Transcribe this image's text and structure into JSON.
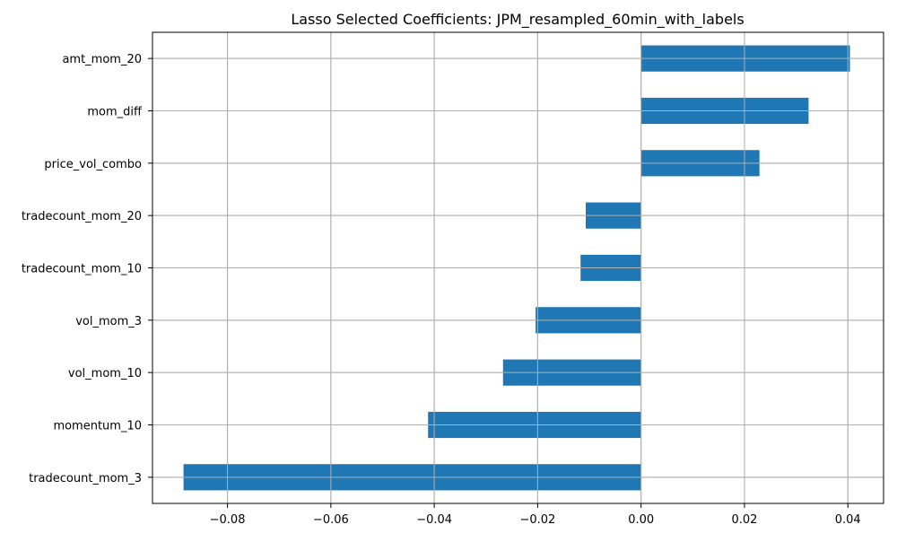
{
  "chart_data": {
    "type": "bar",
    "orientation": "horizontal",
    "title": "Lasso Selected Coefficients: JPM_resampled_60min_with_labels",
    "xlabel": "",
    "ylabel": "",
    "categories": [
      "tradecount_mom_3",
      "momentum_10",
      "vol_mom_10",
      "vol_mom_3",
      "tradecount_mom_10",
      "tradecount_mom_20",
      "price_vol_combo",
      "mom_diff",
      "amt_mom_20"
    ],
    "values": [
      -0.0885,
      -0.0412,
      -0.0267,
      -0.0204,
      -0.0117,
      -0.0107,
      0.0229,
      0.0324,
      0.0404
    ],
    "xlim": [
      -0.0945,
      0.0469
    ],
    "xticks": [
      -0.08,
      -0.06,
      -0.04,
      -0.02,
      0.0,
      0.02,
      0.04
    ],
    "xtick_labels": [
      "−0.08",
      "−0.06",
      "−0.04",
      "−0.02",
      "0.00",
      "0.02",
      "0.04"
    ],
    "grid": true,
    "bar_color": "#1f77b4",
    "grid_color": "#b0b0b0"
  }
}
